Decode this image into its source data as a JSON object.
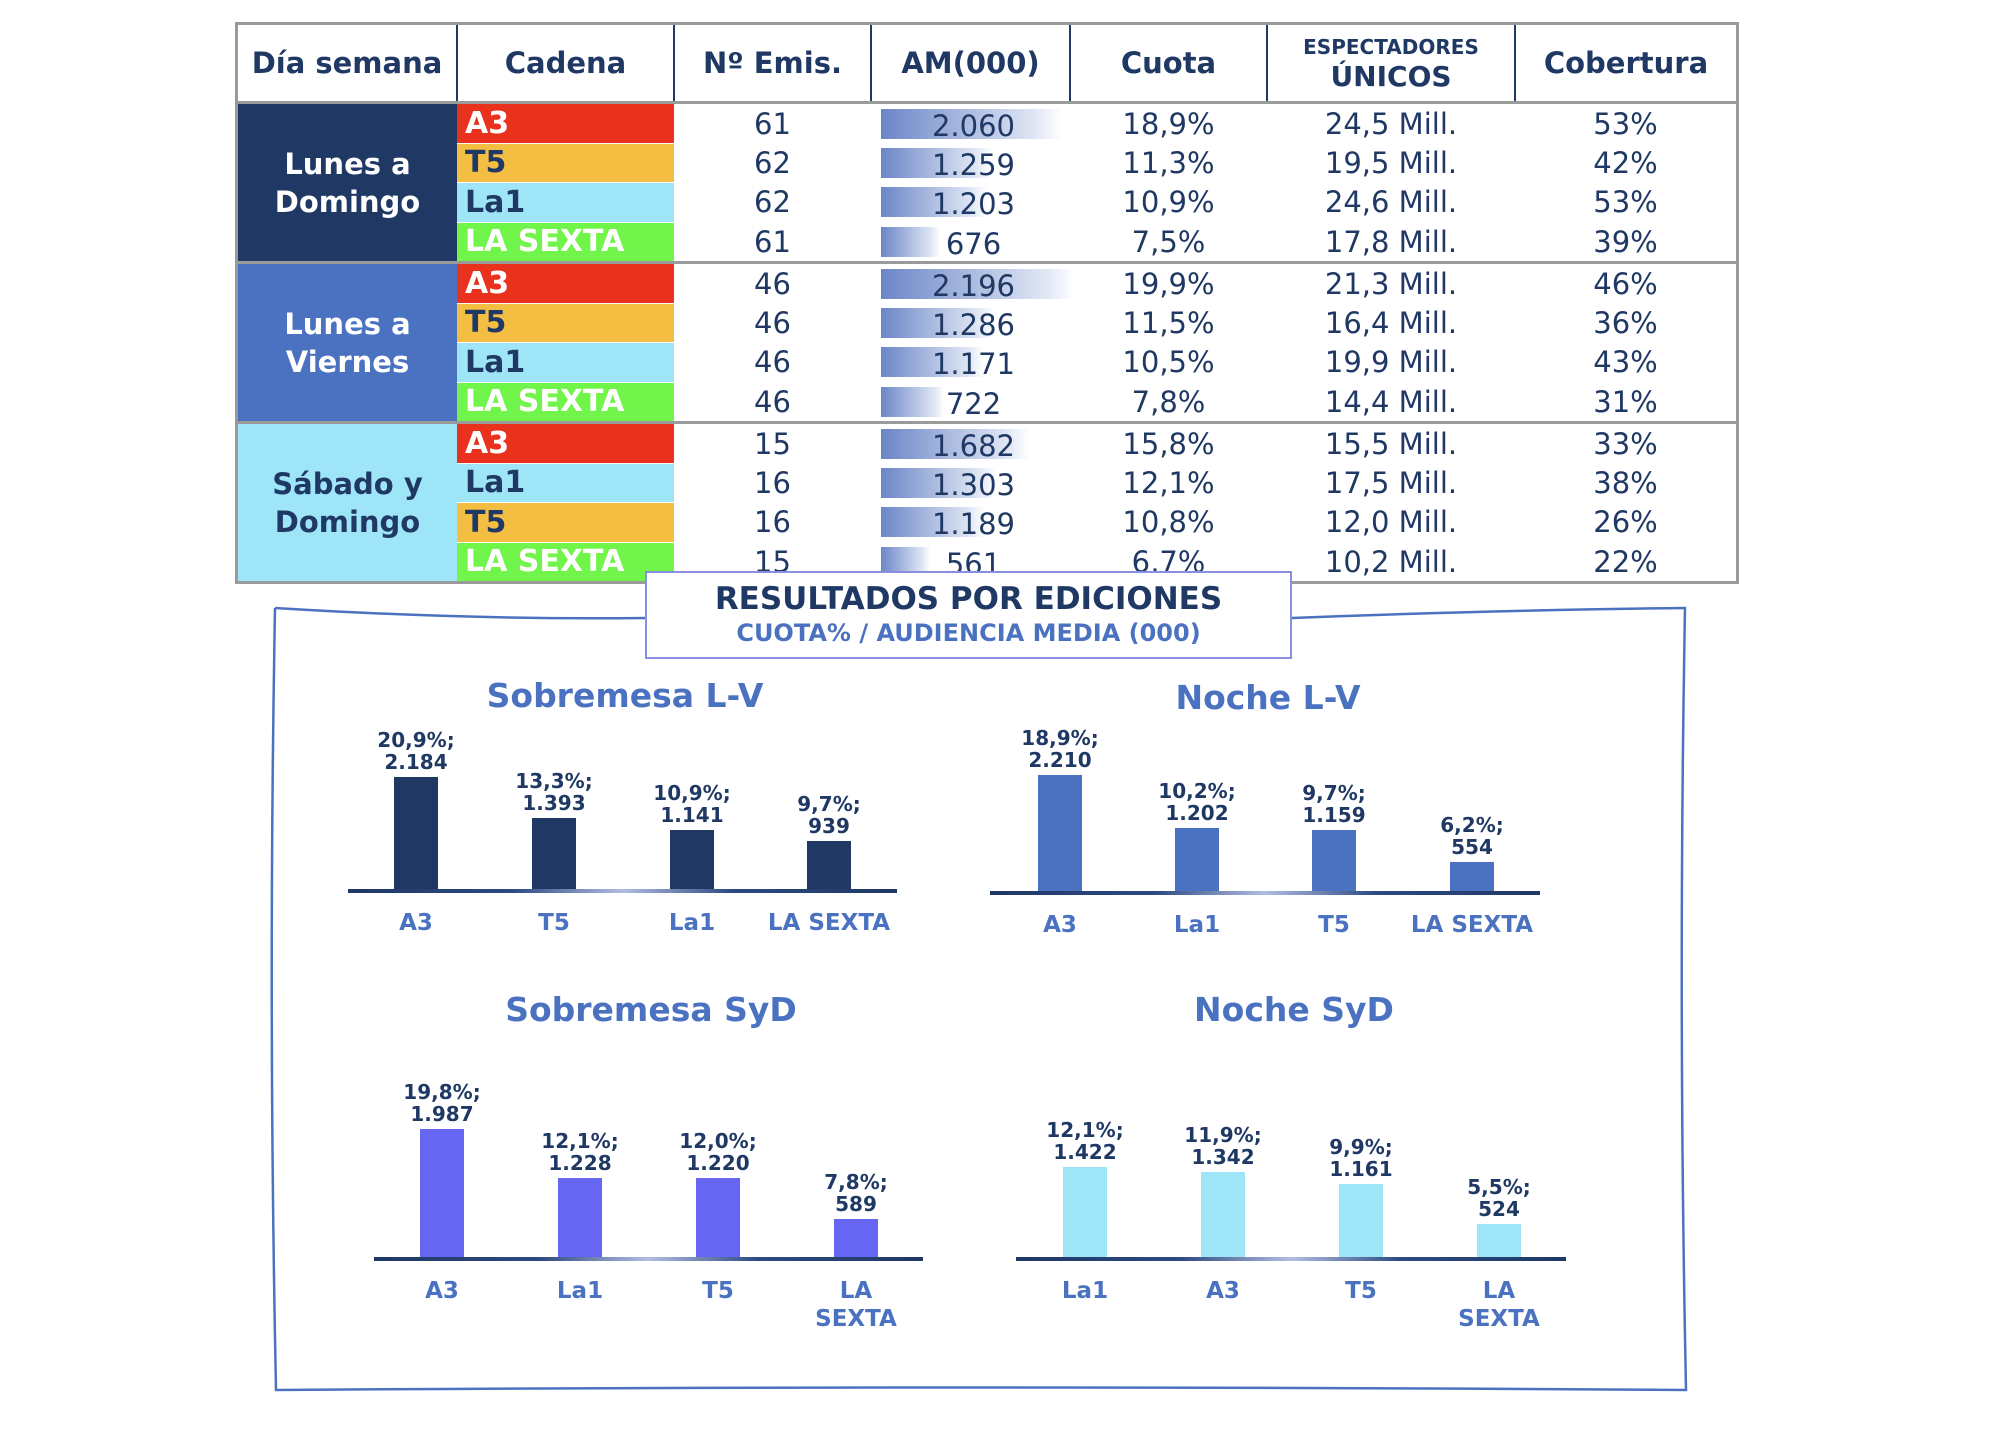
{
  "table": {
    "headers": {
      "dia": "Día semana",
      "cadena": "Cadena",
      "emis": "Nº Emis.",
      "am": "AM(000)",
      "cuota": "Cuota",
      "esp_top": "ESPECTADORES",
      "esp_bottom": "ÚNICOS",
      "cobertura": "Cobertura"
    },
    "groups": [
      {
        "label_1": "Lunes a",
        "label_2": "Domingo",
        "color": "#1f3864",
        "rows": [
          {
            "cadena": "A3",
            "emis": "61",
            "am": "2.060",
            "am_value": 2060,
            "cuota": "18,9%",
            "espectadores": "24,5 Mill.",
            "cobertura": "53%"
          },
          {
            "cadena": "T5",
            "emis": "62",
            "am": "1.259",
            "am_value": 1259,
            "cuota": "11,3%",
            "espectadores": "19,5 Mill.",
            "cobertura": "42%"
          },
          {
            "cadena": "La1",
            "emis": "62",
            "am": "1.203",
            "am_value": 1203,
            "cuota": "10,9%",
            "espectadores": "24,6 Mill.",
            "cobertura": "53%"
          },
          {
            "cadena": "LA SEXTA",
            "emis": "61",
            "am": "676",
            "am_value": 676,
            "cuota": "7,5%",
            "espectadores": "17,8 Mill.",
            "cobertura": "39%"
          }
        ]
      },
      {
        "label_1": "Lunes a",
        "label_2": "Viernes",
        "color": "#4a72c0",
        "rows": [
          {
            "cadena": "A3",
            "emis": "46",
            "am": "2.196",
            "am_value": 2196,
            "cuota": "19,9%",
            "espectadores": "21,3 Mill.",
            "cobertura": "46%"
          },
          {
            "cadena": "T5",
            "emis": "46",
            "am": "1.286",
            "am_value": 1286,
            "cuota": "11,5%",
            "espectadores": "16,4 Mill.",
            "cobertura": "36%"
          },
          {
            "cadena": "La1",
            "emis": "46",
            "am": "1.171",
            "am_value": 1171,
            "cuota": "10,5%",
            "espectadores": "19,9 Mill.",
            "cobertura": "43%"
          },
          {
            "cadena": "LA SEXTA",
            "emis": "46",
            "am": "722",
            "am_value": 722,
            "cuota": "7,8%",
            "espectadores": "14,4 Mill.",
            "cobertura": "31%"
          }
        ]
      },
      {
        "label_1": "Sábado y",
        "label_2": "Domingo",
        "color": "#9ee5f7",
        "rows": [
          {
            "cadena": "A3",
            "emis": "15",
            "am": "1.682",
            "am_value": 1682,
            "cuota": "15,8%",
            "espectadores": "15,5 Mill.",
            "cobertura": "33%"
          },
          {
            "cadena": "La1",
            "emis": "16",
            "am": "1.303",
            "am_value": 1303,
            "cuota": "12,1%",
            "espectadores": "17,5 Mill.",
            "cobertura": "38%"
          },
          {
            "cadena": "T5",
            "emis": "16",
            "am": "1.189",
            "am_value": 1189,
            "cuota": "10,8%",
            "espectadores": "12,0 Mill.",
            "cobertura": "26%"
          },
          {
            "cadena": "LA SEXTA",
            "emis": "15",
            "am": "561",
            "am_value": 561,
            "cuota": "6,7%",
            "espectadores": "10,2 Mill.",
            "cobertura": "22%"
          }
        ]
      }
    ],
    "cadena_colors": {
      "A3": {
        "bg": "#e8321e",
        "fg": "#ffffff"
      },
      "T5": {
        "bg": "#f4be42",
        "fg": "#1f3864"
      },
      "La1": {
        "bg": "#9ee5f7",
        "fg": "#1f3864"
      },
      "LA SEXTA": {
        "bg": "#72f54a",
        "fg": "#ffffff"
      }
    }
  },
  "section": {
    "title": "RESULTADOS POR EDICIONES",
    "subtitle": "CUOTA% / AUDIENCIA MEDIA (000)"
  },
  "chart_data": [
    {
      "type": "bar",
      "title": "Sobremesa L-V",
      "color": "#1f3864",
      "categories": [
        "A3",
        "T5",
        "La1",
        "LA SEXTA"
      ],
      "values": [
        2184,
        1393,
        1141,
        939
      ],
      "labels": [
        [
          "20,9%;",
          "2.184"
        ],
        [
          "13,3%;",
          "1.393"
        ],
        [
          "10,9%;",
          "1.141"
        ],
        [
          "9,7%;",
          "939"
        ]
      ]
    },
    {
      "type": "bar",
      "title": "Noche L-V",
      "color": "#4a72c0",
      "categories": [
        "A3",
        "La1",
        "T5",
        "LA SEXTA"
      ],
      "values": [
        2210,
        1202,
        1159,
        554
      ],
      "labels": [
        [
          "18,9%;",
          "2.210"
        ],
        [
          "10,2%;",
          "1.202"
        ],
        [
          "9,7%;",
          "1.159"
        ],
        [
          "6,2%;",
          "554"
        ]
      ]
    },
    {
      "type": "bar",
      "title": "Sobremesa SyD",
      "color": "#6666f2",
      "categories": [
        "A3",
        "La1",
        "T5",
        "LA SEXTA"
      ],
      "values": [
        1987,
        1228,
        1220,
        589
      ],
      "labels": [
        [
          "19,8%;",
          "1.987"
        ],
        [
          "12,1%;",
          "1.228"
        ],
        [
          "12,0%;",
          "1.220"
        ],
        [
          "7,8%;",
          "589"
        ]
      ]
    },
    {
      "type": "bar",
      "title": "Noche SyD",
      "color": "#9ee5f7",
      "categories": [
        "La1",
        "A3",
        "T5",
        "LA SEXTA"
      ],
      "values": [
        1422,
        1342,
        1161,
        524
      ],
      "labels": [
        [
          "12,1%;",
          "1.422"
        ],
        [
          "11,9%;",
          "1.342"
        ],
        [
          "9,9%;",
          "1.161"
        ],
        [
          "5,5%;",
          "524"
        ]
      ]
    }
  ]
}
